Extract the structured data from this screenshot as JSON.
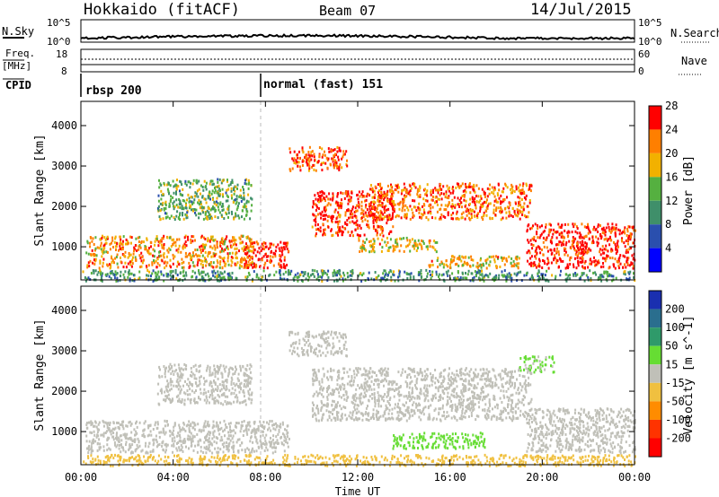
{
  "header": {
    "station": "Hokkaido (fitACF)",
    "beam": "Beam 07",
    "date": "14/Jul/2015"
  },
  "top_panels": {
    "nsky_label": "N.Sky",
    "nsky_ticks": [
      "10^5",
      "10^0"
    ],
    "nsearch_label": "N.Search",
    "nsearch_ticks": [
      "10^5",
      "10^0"
    ],
    "freq_label_1": "Freq.",
    "freq_label_2": "[MHz]",
    "freq_ticks": [
      "18",
      "8"
    ],
    "nave_label": "Nave",
    "nave_ticks": [
      "60",
      "0"
    ],
    "cpid_label": "CPID",
    "cpid_segments": [
      {
        "label": "rbsp 200",
        "start_hour": 0
      },
      {
        "label": "normal (fast) 151",
        "start_hour": 8
      }
    ]
  },
  "chart_data": [
    {
      "type": "heatmap",
      "title": "Power",
      "xlabel": "Time UT",
      "ylabel": "Slant Range [km]",
      "x_ticks": [
        "00:00",
        "04:00",
        "08:00",
        "12:00",
        "16:00",
        "20:00",
        "00:00"
      ],
      "xlim": [
        0,
        24
      ],
      "y_ticks": [
        "1000",
        "2000",
        "3000",
        "4000"
      ],
      "ylim": [
        180,
        4600
      ],
      "colorbar_label": "Power [dB]",
      "colorbar_ticks": [
        "4",
        "8",
        "12",
        "16",
        "20",
        "24",
        "28"
      ],
      "colorbar_range": [
        0,
        30
      ],
      "colors": [
        "#0000ff",
        "#2a4fae",
        "#3f8f6a",
        "#55b040",
        "#f2b100",
        "#ff7f00",
        "#ff0000"
      ],
      "regions": [
        {
          "t0": 0.2,
          "t1": 7.5,
          "r0": 500,
          "r1": 1300,
          "value": 22
        },
        {
          "t0": 7.0,
          "t1": 9.0,
          "r0": 500,
          "r1": 1150,
          "value": 28
        },
        {
          "t0": 3.3,
          "t1": 7.4,
          "r0": 1700,
          "r1": 2700,
          "value": 14
        },
        {
          "t0": 9.0,
          "t1": 11.5,
          "r0": 2900,
          "r1": 3500,
          "value": 26
        },
        {
          "t0": 10.0,
          "t1": 13.5,
          "r0": 1300,
          "r1": 2400,
          "value": 27
        },
        {
          "t0": 12.5,
          "t1": 19.5,
          "r0": 1700,
          "r1": 2600,
          "value": 24
        },
        {
          "t0": 12.0,
          "t1": 15.5,
          "r0": 900,
          "r1": 1250,
          "value": 20
        },
        {
          "t0": 15.0,
          "t1": 19.0,
          "r0": 500,
          "r1": 800,
          "value": 20
        },
        {
          "t0": 19.3,
          "t1": 24.0,
          "r0": 500,
          "r1": 1600,
          "value": 28
        },
        {
          "t0": 0.0,
          "t1": 24.0,
          "r0": 180,
          "r1": 450,
          "value": 12
        }
      ]
    },
    {
      "type": "heatmap",
      "title": "Velocity",
      "xlabel": "Time UT",
      "ylabel": "Slant Range [km]",
      "x_ticks": [
        "00:00",
        "04:00",
        "08:00",
        "12:00",
        "16:00",
        "20:00",
        "00:00"
      ],
      "xlim": [
        0,
        24
      ],
      "y_ticks": [
        "1000",
        "2000",
        "3000",
        "4000"
      ],
      "ylim": [
        180,
        4600
      ],
      "colorbar_label": "Velocity [m s^-1]",
      "colorbar_ticks": [
        "200",
        "100",
        "50",
        "15",
        "-15",
        "-50",
        "-100",
        "-200"
      ],
      "colorbar_range": [
        -250,
        250
      ],
      "colors": [
        "#1a2fb0",
        "#2a6e8e",
        "#2f9a6a",
        "#66dd33",
        "#c0c0b8",
        "#f0c040",
        "#ff8c00",
        "#ff3300",
        "#ff0000"
      ],
      "regions": [
        {
          "t0": 0.2,
          "t1": 9.0,
          "r0": 500,
          "r1": 1300,
          "value": 0
        },
        {
          "t0": 3.3,
          "t1": 7.4,
          "r0": 1700,
          "r1": 2700,
          "value": 0
        },
        {
          "t0": 9.0,
          "t1": 11.5,
          "r0": 2900,
          "r1": 3500,
          "value": 0
        },
        {
          "t0": 10.0,
          "t1": 19.5,
          "r0": 1300,
          "r1": 2600,
          "value": 0
        },
        {
          "t0": 13.5,
          "t1": 17.5,
          "r0": 600,
          "r1": 1000,
          "value": 40
        },
        {
          "t0": 19.0,
          "t1": 20.5,
          "r0": 2500,
          "r1": 2900,
          "value": 30
        },
        {
          "t0": 19.3,
          "t1": 24.0,
          "r0": 500,
          "r1": 1600,
          "value": 0
        },
        {
          "t0": 0.0,
          "t1": 24.0,
          "r0": 180,
          "r1": 450,
          "value": -40
        }
      ]
    }
  ]
}
